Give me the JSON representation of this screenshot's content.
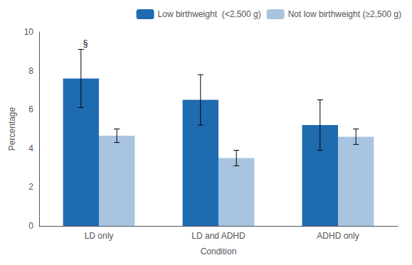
{
  "chart_data": {
    "type": "bar",
    "categories": [
      "LD only",
      "LD and ADHD",
      "ADHD only"
    ],
    "series": [
      {
        "name": "Low birthweight  (<2,500 g)",
        "color": "#1F6BB0",
        "values": [
          7.6,
          6.5,
          5.2
        ],
        "errors": [
          1.5,
          1.3,
          1.3
        ]
      },
      {
        "name": "Not low birthweight (≥2,500 g)",
        "color": "#A8C4E0",
        "values": [
          4.65,
          3.5,
          4.6
        ],
        "errors": [
          0.35,
          0.4,
          0.4
        ]
      }
    ],
    "xlabel": "Condition",
    "ylabel": "Percentage",
    "ylim": [
      0,
      10
    ],
    "yticks": [
      0,
      2,
      4,
      6,
      8,
      10
    ],
    "grid": false,
    "legend": "upper right",
    "annotations": [
      {
        "text": "§",
        "category": "LD only",
        "series": "Low birthweight  (<2,500 g)"
      }
    ]
  }
}
